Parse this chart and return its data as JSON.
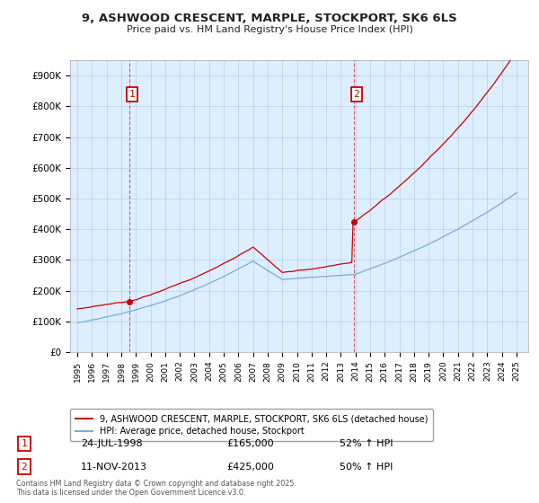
{
  "title": "9, ASHWOOD CRESCENT, MARPLE, STOCKPORT, SK6 6LS",
  "subtitle": "Price paid vs. HM Land Registry's House Price Index (HPI)",
  "ylim": [
    0,
    950000
  ],
  "yticks": [
    0,
    100000,
    200000,
    300000,
    400000,
    500000,
    600000,
    700000,
    800000,
    900000
  ],
  "ytick_labels": [
    "£0",
    "£100K",
    "£200K",
    "£300K",
    "£400K",
    "£500K",
    "£600K",
    "£700K",
    "£800K",
    "£900K"
  ],
  "sale1_year": 1998.54,
  "sale1_price": 165000,
  "sale1_date": "24-JUL-1998",
  "sale1_pct": "52% ↑ HPI",
  "sale2_year": 2013.87,
  "sale2_price": 425000,
  "sale2_date": "11-NOV-2013",
  "sale2_pct": "50% ↑ HPI",
  "legend_label_red": "9, ASHWOOD CRESCENT, MARPLE, STOCKPORT, SK6 6LS (detached house)",
  "legend_label_blue": "HPI: Average price, detached house, Stockport",
  "footer": "Contains HM Land Registry data © Crown copyright and database right 2025.\nThis data is licensed under the Open Government Licence v3.0.",
  "red_color": "#cc0000",
  "blue_color": "#7aabdb",
  "plot_bg_color": "#ddeeff",
  "bg_color": "#ffffff",
  "grid_color": "#b8cfe8",
  "annotation_box_color": "#cc0000"
}
